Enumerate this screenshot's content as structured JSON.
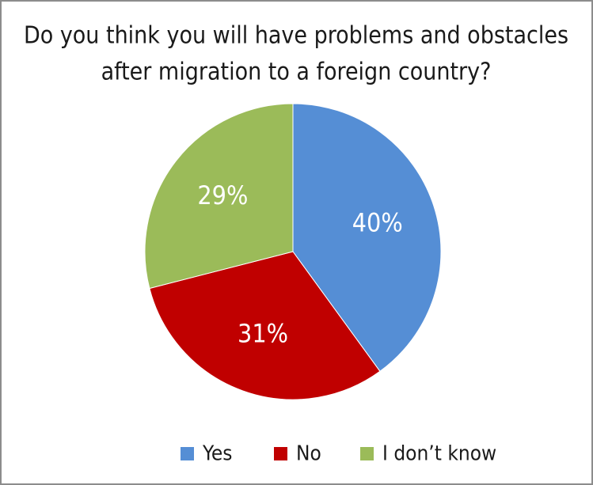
{
  "chart_data": {
    "type": "pie",
    "title": [
      "Do you think you will have problems and obstacles",
      "after migration to a foreign country?"
    ],
    "categories": [
      "Yes",
      "No",
      "I don’t know"
    ],
    "values": [
      40,
      31,
      29
    ],
    "value_labels": [
      "40%",
      "31%",
      "29%"
    ],
    "colors": [
      "#558ed5",
      "#c00000",
      "#9bbb59"
    ],
    "legend": "bottom"
  }
}
